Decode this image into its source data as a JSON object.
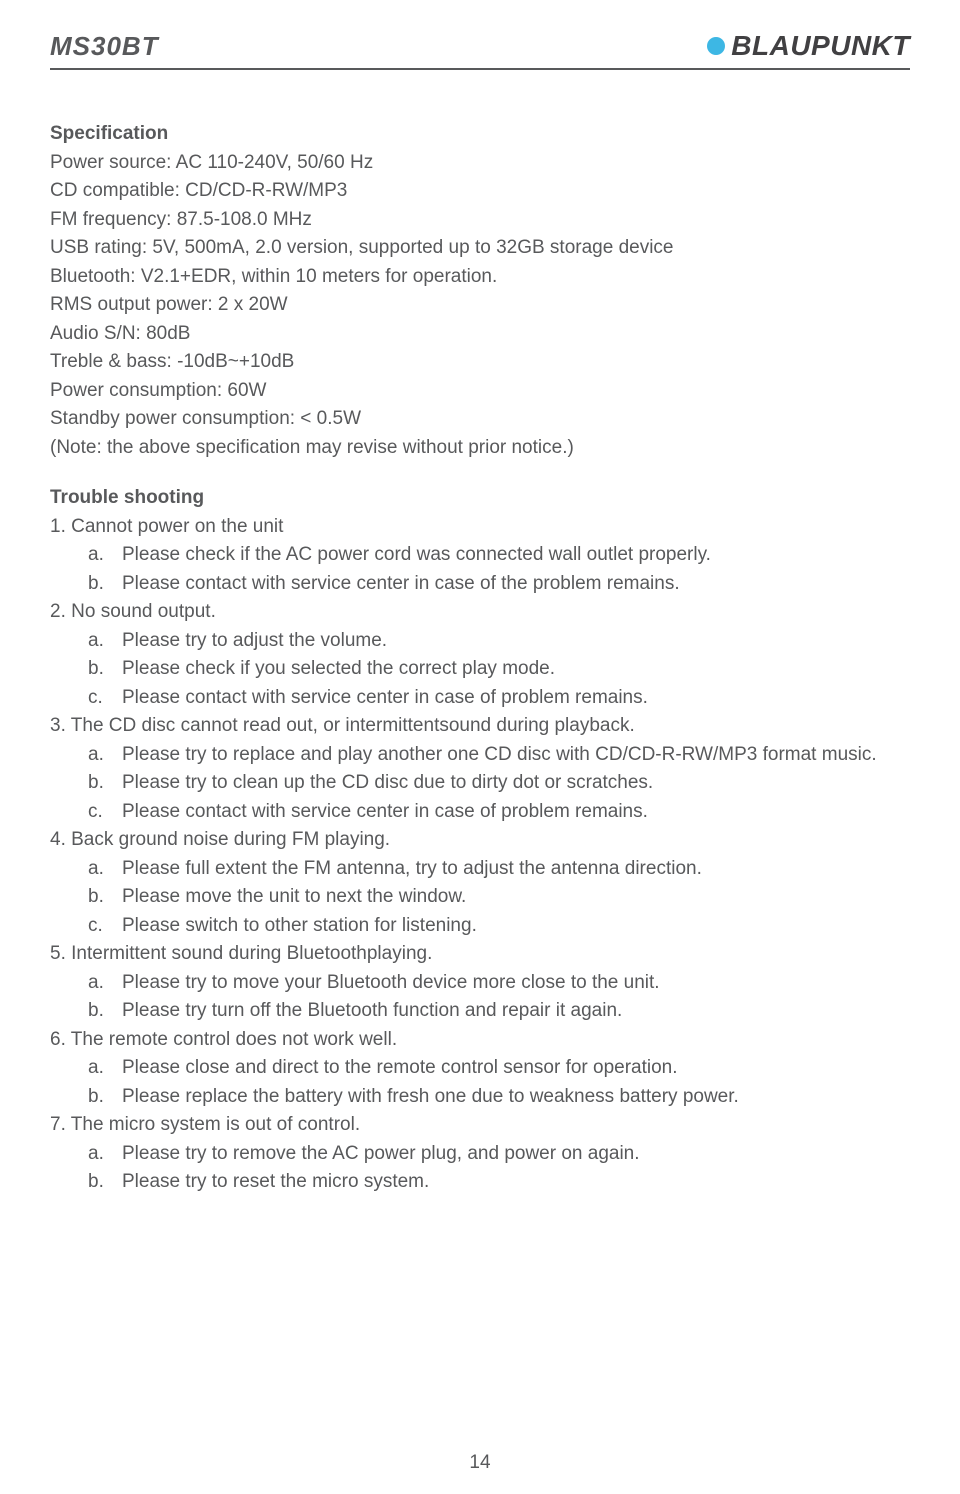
{
  "header": {
    "model": "MS30BT",
    "brand": "BLAUPUNKT"
  },
  "spec": {
    "title": "Specification",
    "lines": [
      "Power source: AC 110-240V, 50/60 Hz",
      "CD compatible: CD/CD-R-RW/MP3",
      "FM frequency: 87.5-108.0 MHz",
      "USB rating: 5V, 500mA, 2.0 version, supported up to 32GB storage device",
      "Bluetooth: V2.1+EDR, within 10 meters for operation.",
      "RMS output power: 2 x 20W",
      "Audio S/N: 80dB",
      "Treble & bass: -10dB~+10dB",
      "Power consumption: 60W",
      "Standby power consumption: < 0.5W",
      "(Note: the above specification may revise without prior notice.)"
    ]
  },
  "trouble": {
    "title": "Trouble shooting",
    "items": [
      {
        "num": "1.",
        "text": "Cannot power on the unit",
        "subs": [
          {
            "l": "a.",
            "t": "Please check if the AC power cord was connected wall outlet properly."
          },
          {
            "l": "b.",
            "t": "Please contact with service center in case of the problem remains."
          }
        ]
      },
      {
        "num": "2.",
        "text": "No sound output.",
        "subs": [
          {
            "l": "a.",
            "t": "Please try to adjust the volume."
          },
          {
            "l": "b.",
            "t": "Please check if you selected the correct play mode."
          },
          {
            "l": "c.",
            "t": "Please contact with service center in case of problem remains."
          }
        ]
      },
      {
        "num": "3.",
        "text": "The CD disc cannot read out, or intermittentsound during playback.",
        "subs": [
          {
            "l": "a.",
            "t": "Please try to replace and play another one CD disc with CD/CD-R-RW/MP3 format music."
          },
          {
            "l": "b.",
            "t": "Please try to clean up the CD disc due to dirty dot or scratches."
          },
          {
            "l": "c.",
            "t": "Please contact with service center in case of problem remains."
          }
        ]
      },
      {
        "num": "4.",
        "text": "Back ground noise during FM playing.",
        "subs": [
          {
            "l": "a.",
            "t": "Please full extent the FM antenna, try to adjust the antenna direction."
          },
          {
            "l": "b.",
            "t": "Please move the unit to next the window."
          },
          {
            "l": "c.",
            "t": "Please switch to other station for listening."
          }
        ]
      },
      {
        "num": "5.",
        "text": "Intermittent sound during Bluetoothplaying.",
        "subs": [
          {
            "l": "a.",
            "t": "Please try to move your Bluetooth device more close to the unit."
          },
          {
            "l": "b.",
            "t": "Please try turn off the Bluetooth function and repair it again."
          }
        ]
      },
      {
        "num": "6.",
        "text": "The remote control does not work well.",
        "subs": [
          {
            "l": "a.",
            "t": "Please close and direct to the remote control sensor for operation."
          },
          {
            "l": "b.",
            "t": "Please replace the battery with fresh one due to weakness battery power."
          }
        ]
      },
      {
        "num": "7.",
        "text": "The micro system is out of control.",
        "subs": [
          {
            "l": "a.",
            "t": "Please try to remove the AC power plug, and power on again."
          },
          {
            "l": "b.",
            "t": "Please try to reset the micro system."
          }
        ]
      }
    ]
  },
  "page_number": "14",
  "colors": {
    "text": "#58595b",
    "brand_dot": "#3db7e4",
    "brand_text": "#414042",
    "rule": "#58595b",
    "background": "#ffffff"
  }
}
